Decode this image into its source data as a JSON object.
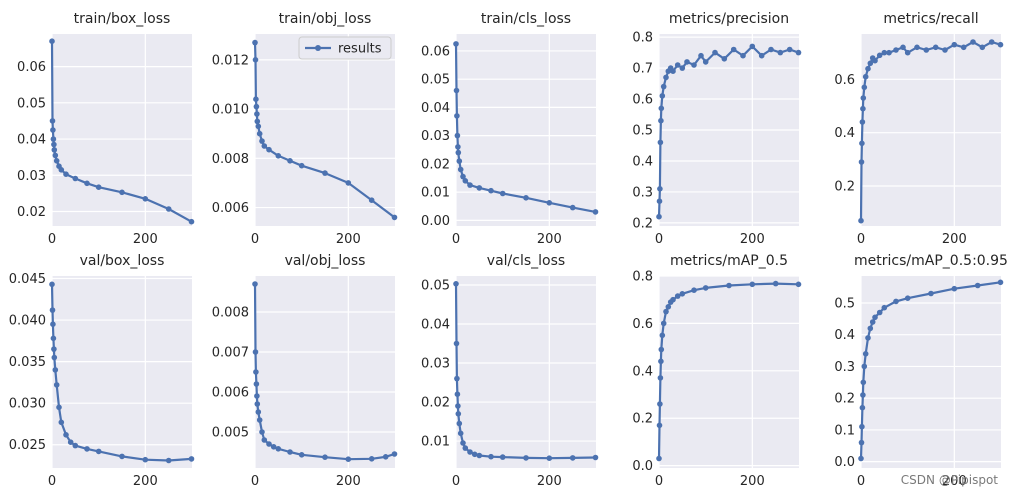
{
  "watermark": "CSDN @Pipispot",
  "legend_label": "results",
  "colors": {
    "line": "#4c72b0",
    "panel_bg": "#eaeaf2",
    "grid": "#ffffff",
    "text": "#262626"
  },
  "chart_data": [
    {
      "type": "line",
      "title": "train/box_loss",
      "xlim": [
        0,
        300
      ],
      "ylim": [
        0.016,
        0.069
      ],
      "xticks": [
        0,
        200
      ],
      "yticks": [
        0.02,
        0.03,
        0.04,
        0.05,
        0.06
      ],
      "ytick_labels": [
        "0.02",
        "0.03",
        "0.04",
        "0.05",
        "0.06"
      ],
      "grid": true,
      "legend": "none",
      "x": [
        0,
        1,
        2,
        3,
        4,
        5,
        7,
        10,
        15,
        20,
        30,
        50,
        75,
        100,
        150,
        200,
        250,
        299
      ],
      "y": [
        0.067,
        0.045,
        0.0425,
        0.04,
        0.0385,
        0.037,
        0.0355,
        0.034,
        0.0325,
        0.0315,
        0.0303,
        0.0291,
        0.0278,
        0.0267,
        0.0253,
        0.0235,
        0.0207,
        0.0172
      ]
    },
    {
      "type": "line",
      "title": "train/obj_loss",
      "xlim": [
        0,
        300
      ],
      "ylim": [
        0.00525,
        0.01305
      ],
      "xticks": [
        0,
        200
      ],
      "yticks": [
        0.006,
        0.008,
        0.01,
        0.012
      ],
      "ytick_labels": [
        "0.006",
        "0.008",
        "0.010",
        "0.012"
      ],
      "grid": true,
      "legend": "upper right",
      "x": [
        0,
        1,
        2,
        3,
        4,
        5,
        7,
        10,
        15,
        20,
        30,
        50,
        75,
        100,
        150,
        200,
        250,
        299
      ],
      "y": [
        0.0127,
        0.012,
        0.0104,
        0.0101,
        0.0098,
        0.0095,
        0.0093,
        0.009,
        0.0087,
        0.0085,
        0.00835,
        0.0081,
        0.0079,
        0.0077,
        0.0074,
        0.007,
        0.0063,
        0.0056
      ]
    },
    {
      "type": "line",
      "title": "train/cls_loss",
      "xlim": [
        0,
        300
      ],
      "ylim": [
        -0.002,
        0.066
      ],
      "xticks": [
        0,
        200
      ],
      "yticks": [
        0,
        0.01,
        0.02,
        0.03,
        0.04,
        0.05,
        0.06
      ],
      "ytick_labels": [
        "0.00",
        "0.01",
        "0.02",
        "0.03",
        "0.04",
        "0.05",
        "0.06"
      ],
      "grid": true,
      "legend": "none",
      "x": [
        0,
        1,
        2,
        3,
        4,
        5,
        7,
        10,
        15,
        20,
        30,
        50,
        75,
        100,
        150,
        200,
        250,
        299
      ],
      "y": [
        0.0625,
        0.046,
        0.037,
        0.03,
        0.026,
        0.024,
        0.021,
        0.018,
        0.0155,
        0.014,
        0.0125,
        0.0115,
        0.0105,
        0.0095,
        0.008,
        0.0062,
        0.0045,
        0.003
      ]
    },
    {
      "type": "line",
      "title": "metrics/precision",
      "xlim": [
        0,
        300
      ],
      "ylim": [
        0.19,
        0.81
      ],
      "xticks": [
        0,
        200
      ],
      "yticks": [
        0.2,
        0.3,
        0.4,
        0.5,
        0.6,
        0.7,
        0.8
      ],
      "ytick_labels": [
        "0.2",
        "0.3",
        "0.4",
        "0.5",
        "0.6",
        "0.7",
        "0.8"
      ],
      "grid": true,
      "legend": "none",
      "x": [
        0,
        1,
        2,
        3,
        4,
        5,
        7,
        10,
        15,
        20,
        25,
        30,
        40,
        50,
        60,
        75,
        90,
        100,
        120,
        140,
        160,
        180,
        200,
        220,
        240,
        260,
        280,
        299
      ],
      "y": [
        0.22,
        0.27,
        0.31,
        0.46,
        0.53,
        0.57,
        0.61,
        0.64,
        0.67,
        0.69,
        0.7,
        0.69,
        0.71,
        0.7,
        0.72,
        0.71,
        0.74,
        0.72,
        0.75,
        0.73,
        0.76,
        0.74,
        0.77,
        0.74,
        0.76,
        0.75,
        0.76,
        0.75
      ]
    },
    {
      "type": "line",
      "title": "metrics/recall",
      "xlim": [
        0,
        300
      ],
      "ylim": [
        0.05,
        0.77
      ],
      "xticks": [
        0,
        200
      ],
      "yticks": [
        0.2,
        0.4,
        0.6
      ],
      "ytick_labels": [
        "0.2",
        "0.4",
        "0.6"
      ],
      "grid": true,
      "legend": "none",
      "x": [
        0,
        1,
        2,
        3,
        4,
        5,
        7,
        10,
        15,
        20,
        25,
        30,
        40,
        50,
        60,
        75,
        90,
        100,
        120,
        140,
        160,
        180,
        200,
        220,
        240,
        260,
        280,
        299
      ],
      "y": [
        0.07,
        0.29,
        0.36,
        0.44,
        0.49,
        0.53,
        0.57,
        0.61,
        0.64,
        0.66,
        0.68,
        0.67,
        0.69,
        0.7,
        0.7,
        0.71,
        0.72,
        0.7,
        0.72,
        0.71,
        0.72,
        0.71,
        0.73,
        0.72,
        0.74,
        0.72,
        0.74,
        0.73
      ]
    },
    {
      "type": "line",
      "title": "val/box_loss",
      "xlim": [
        0,
        300
      ],
      "ylim": [
        0.0222,
        0.0453
      ],
      "xticks": [
        0,
        200
      ],
      "yticks": [
        0.025,
        0.03,
        0.035,
        0.04,
        0.045
      ],
      "ytick_labels": [
        "0.025",
        "0.030",
        "0.035",
        "0.040",
        "0.045"
      ],
      "grid": true,
      "legend": "none",
      "x": [
        0,
        1,
        2,
        3,
        4,
        5,
        7,
        10,
        15,
        20,
        30,
        40,
        50,
        75,
        100,
        150,
        200,
        250,
        299
      ],
      "y": [
        0.0443,
        0.0412,
        0.0395,
        0.0378,
        0.0365,
        0.0355,
        0.034,
        0.0322,
        0.0295,
        0.0277,
        0.0262,
        0.0253,
        0.0249,
        0.0245,
        0.0242,
        0.0236,
        0.0232,
        0.0231,
        0.0233
      ]
    },
    {
      "type": "line",
      "title": "val/obj_loss",
      "xlim": [
        0,
        300
      ],
      "ylim": [
        0.0041,
        0.0089
      ],
      "xticks": [
        0,
        200
      ],
      "yticks": [
        0.005,
        0.006,
        0.007,
        0.008
      ],
      "ytick_labels": [
        "0.005",
        "0.006",
        "0.007",
        "0.008"
      ],
      "grid": true,
      "legend": "none",
      "x": [
        0,
        1,
        2,
        3,
        4,
        5,
        7,
        10,
        15,
        20,
        30,
        40,
        50,
        75,
        100,
        150,
        200,
        250,
        280,
        299
      ],
      "y": [
        0.0087,
        0.007,
        0.0065,
        0.0062,
        0.0059,
        0.0057,
        0.0055,
        0.0053,
        0.005,
        0.0048,
        0.0047,
        0.00463,
        0.00458,
        0.0045,
        0.00443,
        0.00437,
        0.00432,
        0.00433,
        0.00438,
        0.00445
      ]
    },
    {
      "type": "line",
      "title": "val/cls_loss",
      "xlim": [
        0,
        300
      ],
      "ylim": [
        0.0031,
        0.0523
      ],
      "xticks": [
        0,
        200
      ],
      "yticks": [
        0.01,
        0.02,
        0.03,
        0.04,
        0.05
      ],
      "ytick_labels": [
        "0.01",
        "0.02",
        "0.03",
        "0.04",
        "0.05"
      ],
      "grid": true,
      "legend": "none",
      "x": [
        0,
        1,
        2,
        3,
        4,
        5,
        7,
        10,
        15,
        20,
        30,
        40,
        50,
        75,
        100,
        150,
        200,
        250,
        299
      ],
      "y": [
        0.0503,
        0.035,
        0.026,
        0.022,
        0.019,
        0.017,
        0.0145,
        0.012,
        0.0095,
        0.0082,
        0.0072,
        0.0066,
        0.0063,
        0.006,
        0.0059,
        0.0057,
        0.0056,
        0.0057,
        0.0058
      ]
    },
    {
      "type": "line",
      "title": "metrics/mAP_0.5",
      "xlim": [
        0,
        300
      ],
      "ylim": [
        -0.01,
        0.8
      ],
      "xticks": [
        0,
        200
      ],
      "yticks": [
        0,
        0.2,
        0.4,
        0.6,
        0.8
      ],
      "ytick_labels": [
        "0.0",
        "0.2",
        "0.4",
        "0.6",
        "0.8"
      ],
      "grid": true,
      "legend": "none",
      "x": [
        0,
        1,
        2,
        3,
        4,
        5,
        7,
        10,
        15,
        20,
        25,
        30,
        40,
        50,
        75,
        100,
        150,
        200,
        250,
        299
      ],
      "y": [
        0.03,
        0.17,
        0.26,
        0.37,
        0.44,
        0.49,
        0.55,
        0.6,
        0.65,
        0.67,
        0.69,
        0.7,
        0.715,
        0.725,
        0.74,
        0.75,
        0.76,
        0.765,
        0.768,
        0.765
      ]
    },
    {
      "type": "line",
      "title": "metrics/mAP_0.5:0.95",
      "xlim": [
        0,
        300
      ],
      "ylim": [
        -0.02,
        0.585
      ],
      "xticks": [
        0,
        200
      ],
      "yticks": [
        0,
        0.1,
        0.2,
        0.3,
        0.4,
        0.5
      ],
      "ytick_labels": [
        "0.0",
        "0.1",
        "0.2",
        "0.3",
        "0.4",
        "0.5"
      ],
      "grid": true,
      "legend": "none",
      "x": [
        0,
        1,
        2,
        3,
        4,
        5,
        7,
        10,
        15,
        20,
        25,
        30,
        40,
        50,
        75,
        100,
        150,
        200,
        250,
        299
      ],
      "y": [
        0.01,
        0.06,
        0.11,
        0.17,
        0.21,
        0.25,
        0.3,
        0.34,
        0.39,
        0.42,
        0.44,
        0.455,
        0.47,
        0.485,
        0.505,
        0.515,
        0.53,
        0.545,
        0.555,
        0.565
      ]
    }
  ]
}
